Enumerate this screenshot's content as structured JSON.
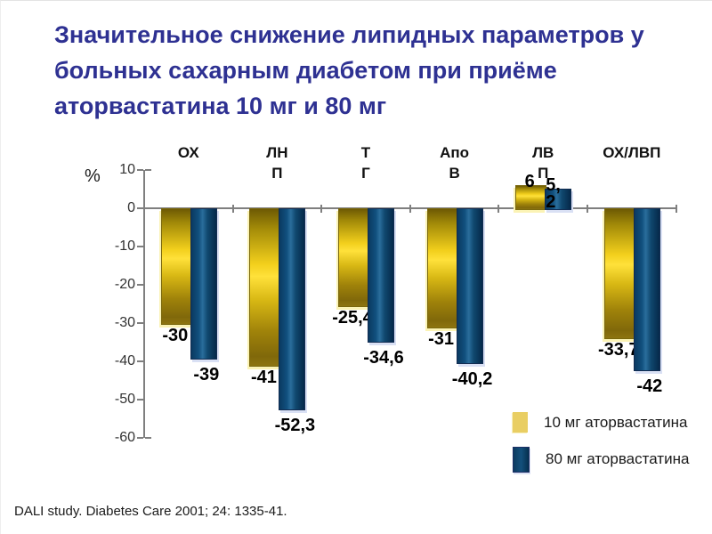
{
  "title": "Значительное снижение липидных параметров у\nбольных сахарным диабетом при приёме\nаторвастатина 10 мг и 80 мг",
  "title_color": "#2e3192",
  "footer": "DALI study. Diabetes Care 2001; 24: 1335-41.",
  "chart_data": {
    "type": "bar",
    "title": "",
    "xlabel": "",
    "ylabel": "%",
    "ylim": [
      -60,
      10
    ],
    "yticks": [
      10,
      0,
      -10,
      -20,
      -30,
      -40,
      -50,
      -60
    ],
    "grid": false,
    "legend_position": "bottom-right",
    "categories": [
      "ОХ",
      "ЛНП",
      "ТГ",
      "Апо В",
      "ЛВП",
      "ОХ/ЛВП"
    ],
    "category_display": [
      "ОХ",
      "ЛН\nП",
      "Т\nГ",
      "Апо\nВ",
      "ЛВ\nП",
      "ОХ/ЛВП"
    ],
    "series": [
      {
        "name": "10 мг аторвастатина",
        "color": "#e3bb0f",
        "values": [
          -30,
          -41,
          -25.4,
          -31,
          6,
          -33.7
        ],
        "labels": [
          "-30",
          "-41",
          "-25,4",
          "-31",
          "6",
          "-33,7"
        ]
      },
      {
        "name": "80 мг аторвастатина",
        "color": "#0d4168",
        "values": [
          -39,
          -52.3,
          -34.6,
          -40.2,
          5.2,
          -42
        ],
        "labels": [
          "-39",
          "-52,3",
          "-34,6",
          "-40,2",
          "5,2",
          "-42"
        ]
      }
    ]
  }
}
